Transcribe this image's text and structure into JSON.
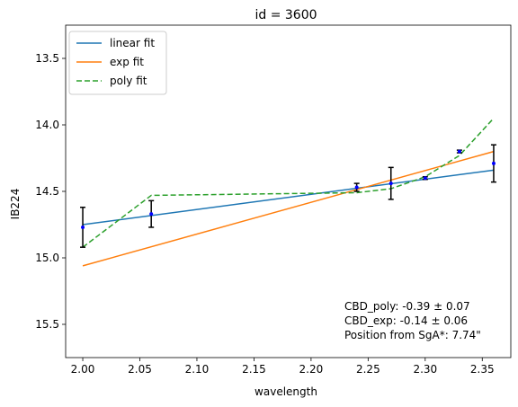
{
  "chart_data": {
    "type": "line",
    "title": "id = 3600",
    "xlabel": "wavelength",
    "ylabel": "IB224",
    "xlim": [
      1.985,
      2.375
    ],
    "ylim": [
      15.75,
      13.25
    ],
    "y_inverted": true,
    "grid": false,
    "legend_position": "top-left",
    "x_ticks": [
      2.0,
      2.05,
      2.1,
      2.15,
      2.2,
      2.25,
      2.3,
      2.35
    ],
    "x_tick_labels": [
      "2.00",
      "2.05",
      "2.10",
      "2.15",
      "2.20",
      "2.25",
      "2.30",
      "2.35"
    ],
    "y_ticks": [
      13.5,
      14.0,
      14.5,
      15.0,
      15.5
    ],
    "y_tick_labels": [
      "13.5",
      "14.0",
      "14.5",
      "15.0",
      "15.5"
    ],
    "measurements": {
      "name": "",
      "color": "#0000ff",
      "error_color": "#000000",
      "x": [
        2.0,
        2.06,
        2.24,
        2.27,
        2.3,
        2.33,
        2.36
      ],
      "y": [
        14.77,
        14.67,
        14.47,
        14.44,
        14.4,
        14.2,
        14.29
      ],
      "err": [
        0.15,
        0.1,
        0.03,
        0.12,
        0.01,
        0.01,
        0.14
      ]
    },
    "series": [
      {
        "name": "linear fit",
        "color": "#1f77b4",
        "dash": "",
        "x": [
          2.0,
          2.36
        ],
        "values": [
          14.75,
          14.34
        ]
      },
      {
        "name": "exp fit",
        "color": "#ff7f0e",
        "dash": "",
        "x": [
          2.0,
          2.36
        ],
        "values": [
          15.06,
          14.2
        ]
      },
      {
        "name": "poly fit",
        "color": "#2ca02c",
        "dash": "6,3",
        "x": [
          2.0,
          2.06,
          2.24,
          2.27,
          2.3,
          2.33,
          2.36
        ],
        "values": [
          14.92,
          14.53,
          14.51,
          14.48,
          14.39,
          14.23,
          13.95
        ]
      }
    ],
    "annotations": [
      "CBD_poly: -0.39 ± 0.07",
      "CBD_exp: -0.14 ± 0.06",
      "Position from SgA*: 7.74\""
    ]
  }
}
